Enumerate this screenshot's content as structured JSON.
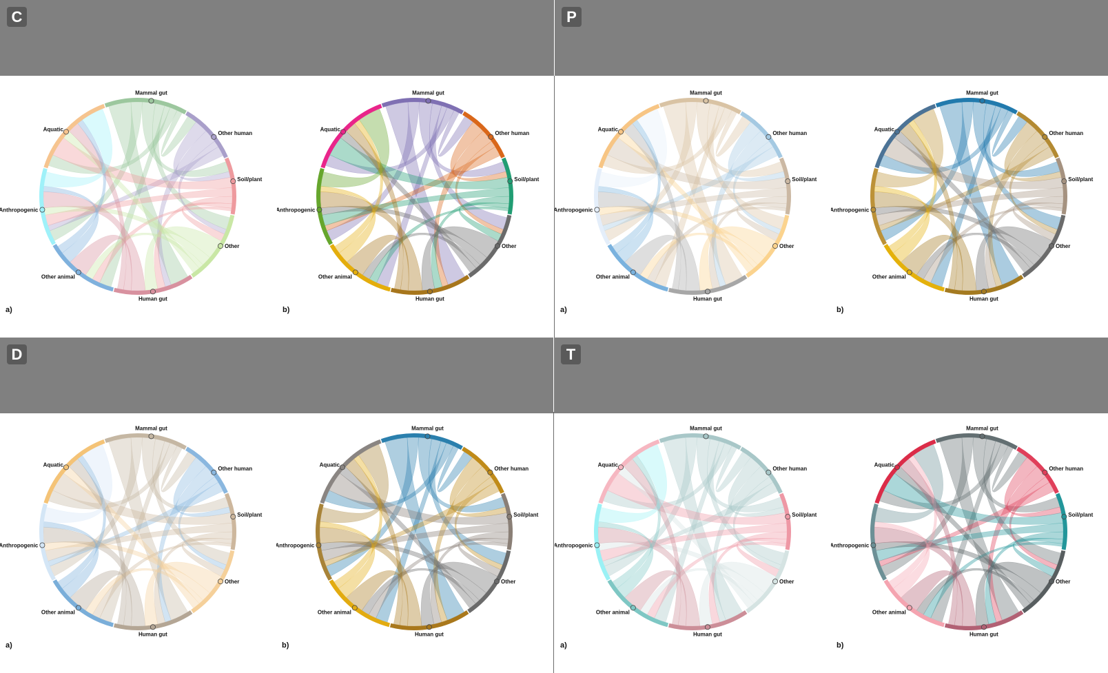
{
  "node_names": [
    "Mammal gut",
    "Other human",
    "Soil/plant",
    "Other",
    "Human gut",
    "Other animal",
    "Anthropogenic",
    "Aquatic"
  ],
  "links": [
    [
      0,
      4,
      12
    ],
    [
      0,
      6,
      6
    ],
    [
      0,
      2,
      7
    ],
    [
      0,
      3,
      5
    ],
    [
      0,
      5,
      3
    ],
    [
      0,
      7,
      4
    ],
    [
      0,
      1,
      3
    ],
    [
      1,
      2,
      4
    ],
    [
      1,
      4,
      4
    ],
    [
      1,
      3,
      2
    ],
    [
      1,
      6,
      3
    ],
    [
      2,
      7,
      7
    ],
    [
      2,
      6,
      6
    ],
    [
      2,
      4,
      5
    ],
    [
      2,
      3,
      3
    ],
    [
      2,
      5,
      2
    ],
    [
      3,
      4,
      8
    ],
    [
      3,
      6,
      4
    ],
    [
      3,
      5,
      2
    ],
    [
      3,
      7,
      3
    ],
    [
      4,
      6,
      9
    ],
    [
      4,
      5,
      5
    ],
    [
      4,
      7,
      4
    ],
    [
      5,
      6,
      3
    ],
    [
      5,
      7,
      2
    ],
    [
      6,
      7,
      8
    ]
  ],
  "panels": [
    {
      "letter": "C",
      "sub": [
        {
          "tag": "a)",
          "colors": [
            "#9cc79e",
            "#a99fca",
            "#ee9a9e",
            "#c9e7a5",
            "#d8919f",
            "#7fb1dd",
            "#9ff1f9",
            "#f6c48f"
          ]
        },
        {
          "tag": "b)",
          "colors": [
            "#7f70b3",
            "#d9671a",
            "#219d73",
            "#6a6a6a",
            "#a7761c",
            "#e4ad0c",
            "#66a62d",
            "#e9258a"
          ]
        }
      ]
    },
    {
      "letter": "P",
      "sub": [
        {
          "tag": "a)",
          "colors": [
            "#d9c3a4",
            "#a4c9e2",
            "#cbb8a3",
            "#fbd38e",
            "#a7a7a7",
            "#7ab2de",
            "#e4eefa",
            "#f7c584"
          ]
        },
        {
          "tag": "b)",
          "colors": [
            "#217aad",
            "#b38a32",
            "#a59280",
            "#6b6b6b",
            "#a47a20",
            "#e4b10b",
            "#bc9238",
            "#4c7396"
          ]
        }
      ]
    },
    {
      "letter": "D",
      "sub": [
        {
          "tag": "a)",
          "colors": [
            "#c5b7a3",
            "#8ab7df",
            "#cdb79d",
            "#f5d09a",
            "#b4a695",
            "#7aaed9",
            "#d4e6f6",
            "#f4c377"
          ]
        },
        {
          "tag": "b)",
          "colors": [
            "#2a7fad",
            "#c08b19",
            "#8a7f76",
            "#6b6b6b",
            "#a9781c",
            "#e2ab10",
            "#a88338",
            "#8a8582"
          ]
        }
      ]
    },
    {
      "letter": "T",
      "sub": [
        {
          "tag": "a)",
          "colors": [
            "#a8c7c8",
            "#a8c7c8",
            "#ee98a5",
            "#d5e3e2",
            "#cc8e98",
            "#7ec7c4",
            "#9af1f5",
            "#f6b7c1"
          ]
        },
        {
          "tag": "b)",
          "colors": [
            "#636f72",
            "#e03f5a",
            "#22969a",
            "#585e60",
            "#b26174",
            "#f4a4b0",
            "#6c9096",
            "#db2c48"
          ]
        }
      ]
    }
  ]
}
